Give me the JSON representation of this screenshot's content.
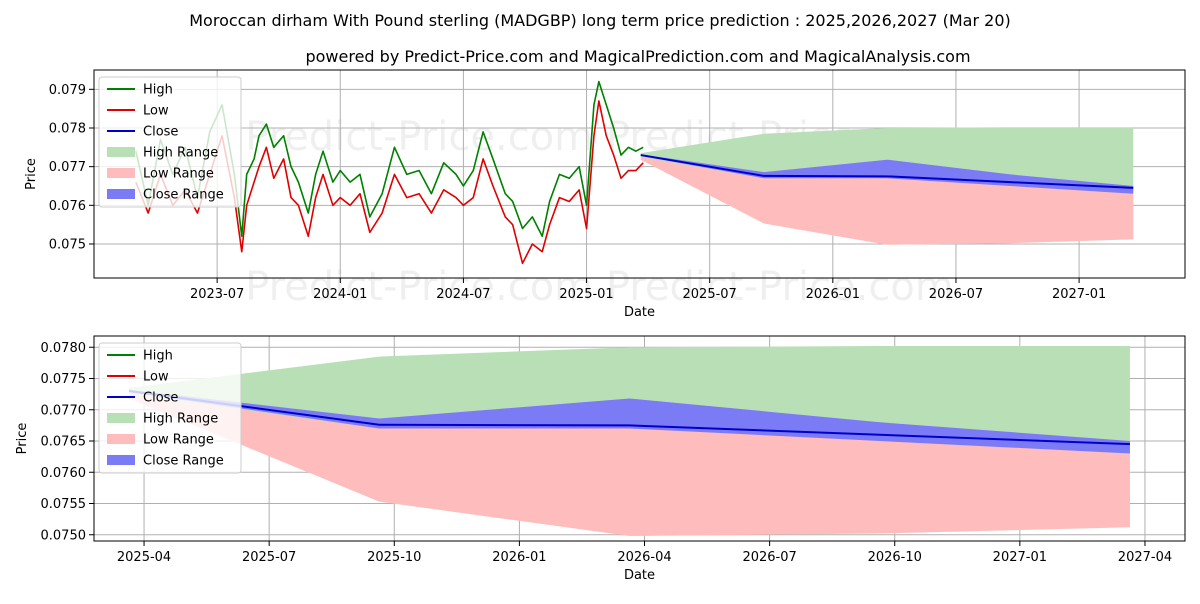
{
  "title": "Moroccan dirham With Pound sterling (MADGBP) long term price prediction : 2025,2026,2027 (Mar 20)",
  "subtitle": "powered by Predict-Price.com and MagicalPrediction.com and MagicalAnalysis.com",
  "watermark": "Predict-Price.com",
  "colors": {
    "high": "#008000",
    "low": "#e00000",
    "close": "#0000cc",
    "high_range": "#b9dfb7",
    "low_range": "#ffbcbc",
    "close_range": "#7b7bf5",
    "grid": "#b0b0b0"
  },
  "chart_data": [
    {
      "type": "line",
      "name": "top-panel",
      "xlabel": "Date",
      "ylabel": "Price",
      "xlim": [
        2023.0,
        2027.43
      ],
      "ylim": [
        0.07412,
        0.0795
      ],
      "xticks": [
        {
          "v": 2023.5,
          "label": "2023-07"
        },
        {
          "v": 2024.0,
          "label": "2024-01"
        },
        {
          "v": 2024.5,
          "label": "2024-07"
        },
        {
          "v": 2025.0,
          "label": "2025-01"
        },
        {
          "v": 2025.5,
          "label": "2025-07"
        },
        {
          "v": 2026.0,
          "label": "2026-01"
        },
        {
          "v": 2026.5,
          "label": "2026-07"
        },
        {
          "v": 2027.0,
          "label": "2027-01"
        }
      ],
      "yticks": [
        {
          "v": 0.075,
          "label": "0.075"
        },
        {
          "v": 0.076,
          "label": "0.076"
        },
        {
          "v": 0.077,
          "label": "0.077"
        },
        {
          "v": 0.078,
          "label": "0.078"
        },
        {
          "v": 0.079,
          "label": "0.079"
        }
      ],
      "legend": [
        "High",
        "Low",
        "Close",
        "High Range",
        "Low Range",
        "Close Range"
      ],
      "legend_loc": "upper-left",
      "history": {
        "x": [
          2023.17,
          2023.22,
          2023.27,
          2023.32,
          2023.37,
          2023.42,
          2023.47,
          2023.52,
          2023.57,
          2023.6,
          2023.62,
          2023.65,
          2023.67,
          2023.7,
          2023.73,
          2023.77,
          2023.8,
          2023.83,
          2023.87,
          2023.9,
          2023.93,
          2023.97,
          2024.0,
          2024.04,
          2024.08,
          2024.12,
          2024.17,
          2024.22,
          2024.27,
          2024.32,
          2024.37,
          2024.42,
          2024.47,
          2024.5,
          2024.54,
          2024.58,
          2024.62,
          2024.67,
          2024.7,
          2024.74,
          2024.78,
          2024.82,
          2024.85,
          2024.89,
          2024.93,
          2024.97,
          2025.0,
          2025.03,
          2025.05,
          2025.08,
          2025.11,
          2025.14,
          2025.17,
          2025.2,
          2025.23
        ],
        "high": [
          0.0774,
          0.076,
          0.0777,
          0.0768,
          0.0775,
          0.0762,
          0.0779,
          0.0786,
          0.0768,
          0.0752,
          0.0768,
          0.0772,
          0.0778,
          0.0781,
          0.0775,
          0.0778,
          0.077,
          0.0766,
          0.0758,
          0.0768,
          0.0774,
          0.0766,
          0.0769,
          0.0766,
          0.0768,
          0.0757,
          0.0763,
          0.0775,
          0.0768,
          0.0769,
          0.0763,
          0.0771,
          0.0768,
          0.0765,
          0.0769,
          0.0779,
          0.0772,
          0.0763,
          0.0761,
          0.0754,
          0.0757,
          0.0752,
          0.0761,
          0.0768,
          0.0767,
          0.077,
          0.076,
          0.0786,
          0.0792,
          0.0786,
          0.078,
          0.0773,
          0.0775,
          0.0774,
          0.0775
        ],
        "low": [
          0.0766,
          0.0758,
          0.0768,
          0.076,
          0.0764,
          0.0758,
          0.0768,
          0.0778,
          0.0762,
          0.0748,
          0.076,
          0.0766,
          0.077,
          0.0775,
          0.0767,
          0.0772,
          0.0762,
          0.076,
          0.0752,
          0.0762,
          0.0768,
          0.076,
          0.0762,
          0.076,
          0.0763,
          0.0753,
          0.0758,
          0.0768,
          0.0762,
          0.0763,
          0.0758,
          0.0764,
          0.0762,
          0.076,
          0.0762,
          0.0772,
          0.0765,
          0.0757,
          0.0755,
          0.0745,
          0.075,
          0.0748,
          0.0755,
          0.0762,
          0.0761,
          0.0764,
          0.0754,
          0.0778,
          0.0787,
          0.0778,
          0.0773,
          0.0767,
          0.0769,
          0.0769,
          0.0771
        ]
      },
      "forecast": {
        "x": [
          2025.22,
          2025.72,
          2026.22,
          2026.72,
          2027.22
        ],
        "close": [
          0.0773,
          0.07676,
          0.07675,
          0.0766,
          0.07645
        ],
        "high_range_upper": [
          0.07735,
          0.07785,
          0.078,
          0.07802,
          0.07802
        ],
        "high_range_lower": [
          0.07725,
          0.0766,
          0.0766,
          0.07655,
          0.07645
        ],
        "low_range_upper": [
          0.07725,
          0.0767,
          0.0767,
          0.07655,
          0.0763
        ],
        "low_range_lower": [
          0.07718,
          0.07553,
          0.07498,
          0.07502,
          0.07512
        ],
        "close_range_upper": [
          0.07732,
          0.07686,
          0.07718,
          0.0768,
          0.0765
        ],
        "close_range_lower": [
          0.07728,
          0.0767,
          0.0767,
          0.0765,
          0.0763
        ]
      }
    },
    {
      "type": "line",
      "name": "bottom-panel",
      "xlabel": "Date",
      "ylabel": "Price",
      "xlim": [
        2025.15,
        2027.33
      ],
      "ylim": [
        0.0749,
        0.07818
      ],
      "xticks": [
        {
          "v": 2025.25,
          "label": "2025-04"
        },
        {
          "v": 2025.5,
          "label": "2025-07"
        },
        {
          "v": 2025.75,
          "label": "2025-10"
        },
        {
          "v": 2026.0,
          "label": "2026-01"
        },
        {
          "v": 2026.25,
          "label": "2026-04"
        },
        {
          "v": 2026.5,
          "label": "2026-07"
        },
        {
          "v": 2026.75,
          "label": "2026-10"
        },
        {
          "v": 2027.0,
          "label": "2027-01"
        },
        {
          "v": 2027.25,
          "label": "2027-04"
        }
      ],
      "yticks": [
        {
          "v": 0.075,
          "label": "0.0750"
        },
        {
          "v": 0.0755,
          "label": "0.0755"
        },
        {
          "v": 0.076,
          "label": "0.0760"
        },
        {
          "v": 0.0765,
          "label": "0.0765"
        },
        {
          "v": 0.077,
          "label": "0.0770"
        },
        {
          "v": 0.0775,
          "label": "0.0775"
        },
        {
          "v": 0.078,
          "label": "0.0780"
        }
      ],
      "legend": [
        "High",
        "Low",
        "Close",
        "High Range",
        "Low Range",
        "Close Range"
      ],
      "legend_loc": "upper-left",
      "forecast": {
        "x": [
          2025.22,
          2025.72,
          2026.22,
          2026.72,
          2027.22
        ],
        "close": [
          0.0773,
          0.07676,
          0.07675,
          0.0766,
          0.07645
        ],
        "high_range_upper": [
          0.07735,
          0.07785,
          0.078,
          0.07802,
          0.07802
        ],
        "high_range_lower": [
          0.07725,
          0.0766,
          0.0766,
          0.07655,
          0.07645
        ],
        "low_range_upper": [
          0.07725,
          0.0767,
          0.0767,
          0.07655,
          0.0763
        ],
        "low_range_lower": [
          0.07718,
          0.07553,
          0.07498,
          0.07502,
          0.07512
        ],
        "close_range_upper": [
          0.07732,
          0.07686,
          0.07718,
          0.0768,
          0.0765
        ],
        "close_range_lower": [
          0.07728,
          0.0767,
          0.0767,
          0.0765,
          0.0763
        ]
      }
    }
  ]
}
